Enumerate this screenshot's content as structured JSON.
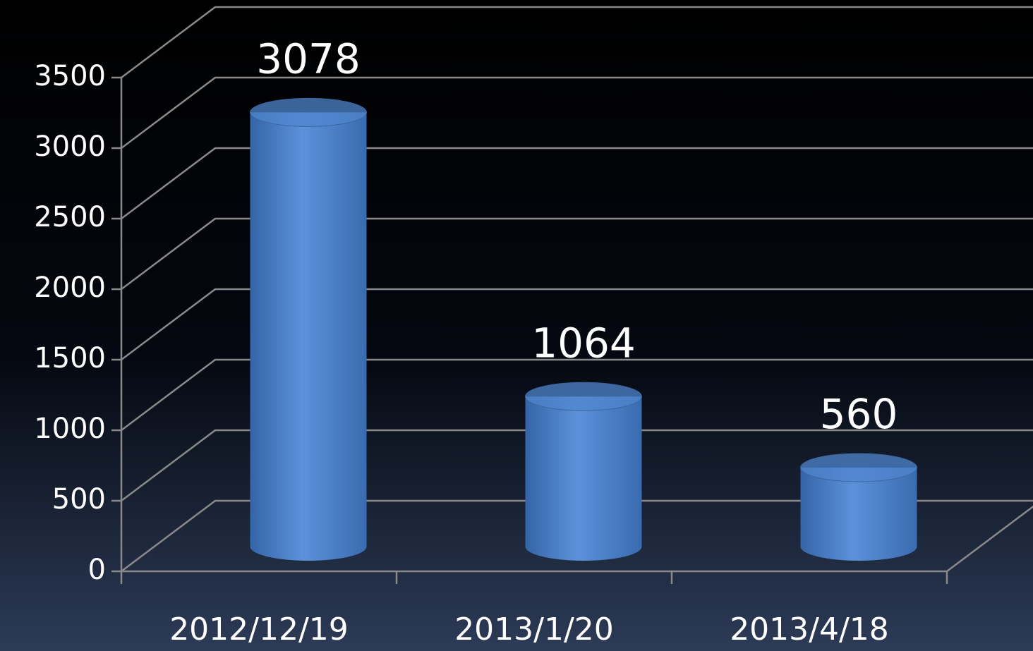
{
  "chart_data": {
    "type": "bar",
    "categories": [
      "2012/12/19",
      "2013/1/20",
      "2013/4/18"
    ],
    "values": [
      3078,
      1064,
      560
    ],
    "color": "#4f86cc",
    "ylim": [
      0,
      3500
    ],
    "yticks": [
      0,
      500,
      1000,
      1500,
      2000,
      2500,
      3000,
      3500
    ],
    "grid": true
  }
}
